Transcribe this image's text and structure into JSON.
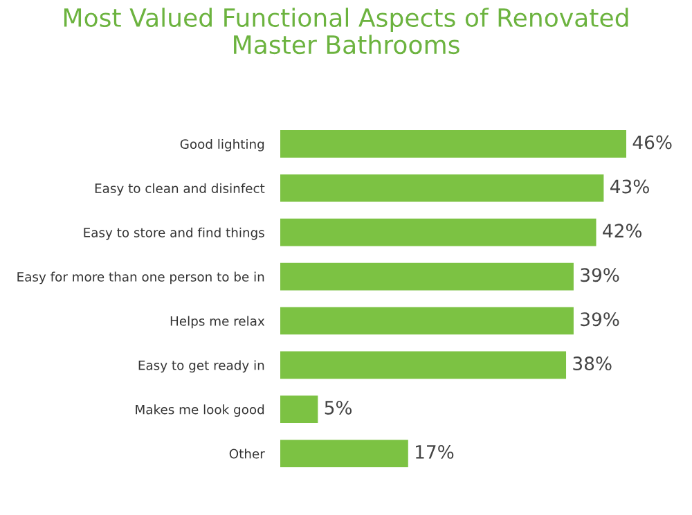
{
  "chart_data": {
    "type": "bar",
    "orientation": "horizontal",
    "title": "Most Valued Functional Aspects of Renovated\nMaster Bathrooms",
    "categories": [
      "Good lighting",
      "Easy to clean and disinfect",
      "Easy to store and find things",
      "Easy for more than one person to be in",
      "Helps me relax",
      "Easy to get ready in",
      "Makes me look good",
      "Other"
    ],
    "values": [
      46,
      43,
      42,
      39,
      39,
      38,
      5,
      17
    ],
    "value_labels": [
      "46%",
      "43%",
      "42%",
      "39%",
      "39%",
      "38%",
      "5%",
      "17%"
    ],
    "color": "#7cc243",
    "grid": false,
    "legend": false
  }
}
